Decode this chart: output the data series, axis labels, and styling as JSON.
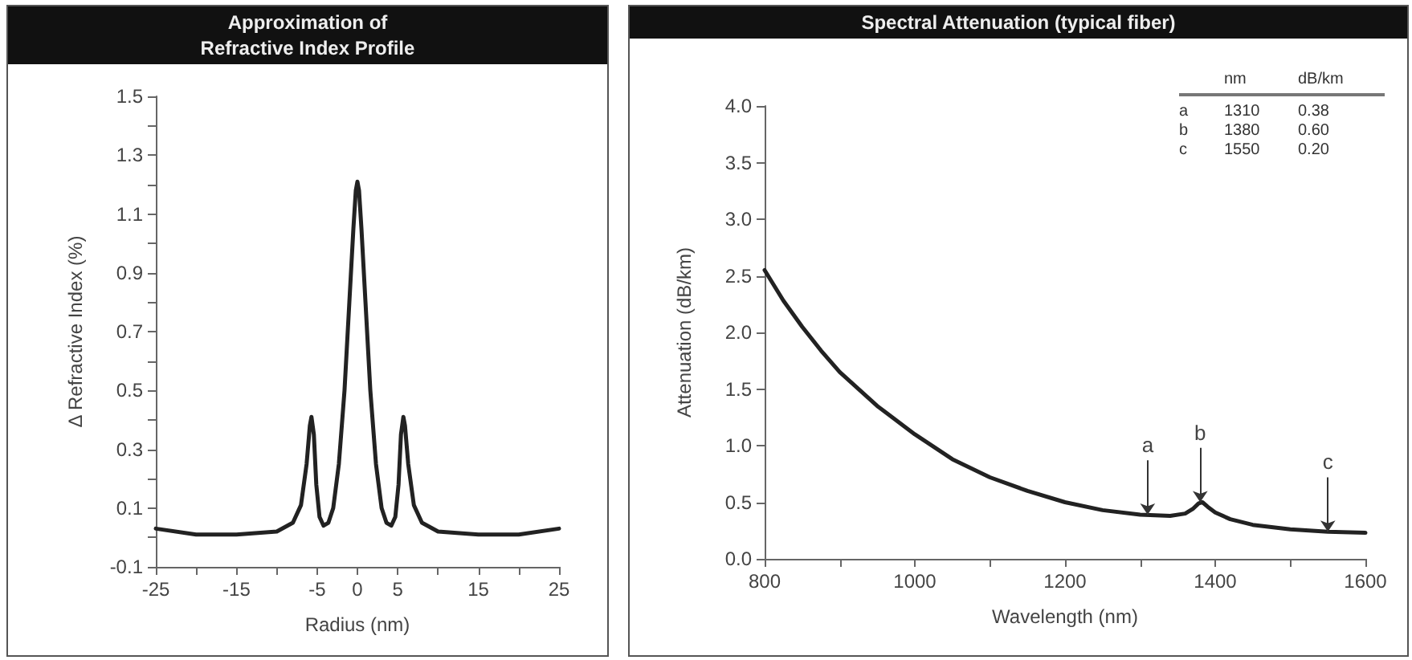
{
  "chart_data": [
    {
      "type": "line",
      "title": "Approximation of\nRefractive Index Profile",
      "xlabel": "Radius (nm)",
      "ylabel": "Δ Refractive Index (%)",
      "x": [
        -25,
        -20,
        -15,
        -10,
        -8,
        -7,
        -6.3,
        -5.9,
        -5.7,
        -5.4,
        -5.1,
        -4.7,
        -4.2,
        -3.6,
        -3,
        -2.3,
        -1.6,
        -1,
        -0.5,
        -0.2,
        0,
        0.2,
        0.5,
        1,
        1.6,
        2.3,
        3,
        3.6,
        4.2,
        4.7,
        5.1,
        5.4,
        5.7,
        5.9,
        6.3,
        7,
        8,
        10,
        15,
        20,
        25
      ],
      "series": [
        {
          "color": "#222222",
          "values": [
            0.03,
            0.01,
            0.01,
            0.02,
            0.05,
            0.11,
            0.25,
            0.38,
            0.41,
            0.35,
            0.18,
            0.07,
            0.04,
            0.05,
            0.1,
            0.25,
            0.5,
            0.8,
            1.05,
            1.18,
            1.21,
            1.18,
            1.05,
            0.8,
            0.5,
            0.25,
            0.1,
            0.05,
            0.04,
            0.07,
            0.18,
            0.35,
            0.41,
            0.38,
            0.25,
            0.11,
            0.05,
            0.02,
            0.01,
            0.01,
            0.03
          ]
        }
      ],
      "xlim": [
        -25,
        25
      ],
      "xticks": [
        -25,
        {
          "value": -20,
          "label": null
        },
        -15,
        {
          "value": -10,
          "label": null
        },
        -5,
        0,
        5,
        {
          "value": 10,
          "label": null
        },
        15,
        {
          "value": 20,
          "label": null
        },
        25
      ],
      "ylim": [
        -0.1,
        1.5
      ],
      "yticks": [
        -0.1,
        {
          "value": 0,
          "label": null
        },
        0.1,
        {
          "value": 0.2,
          "label": null
        },
        0.3,
        {
          "value": 0.4,
          "label": null
        },
        0.5,
        {
          "value": 0.6,
          "label": null
        },
        0.7,
        {
          "value": 0.8,
          "label": null
        },
        0.9,
        {
          "value": 1,
          "label": null
        },
        1.1,
        {
          "value": 1.2,
          "label": null
        },
        1.3,
        {
          "value": 1.4,
          "label": null
        },
        1.5
      ],
      "grid": false,
      "marker": "none",
      "line_style": "solid"
    },
    {
      "type": "line",
      "title": "Spectral Attenuation (typical fiber)",
      "xlabel": "Wavelength (nm)",
      "ylabel": "Attenuation (dB/km)",
      "x": [
        800,
        825,
        850,
        875,
        900,
        950,
        1000,
        1050,
        1100,
        1150,
        1200,
        1250,
        1300,
        1340,
        1360,
        1370,
        1378,
        1383,
        1390,
        1400,
        1420,
        1450,
        1500,
        1550,
        1600
      ],
      "series": [
        {
          "color": "#222222",
          "values": [
            2.55,
            2.28,
            2.05,
            1.84,
            1.65,
            1.35,
            1.1,
            0.88,
            0.72,
            0.6,
            0.5,
            0.43,
            0.39,
            0.38,
            0.4,
            0.44,
            0.49,
            0.5,
            0.46,
            0.41,
            0.35,
            0.3,
            0.26,
            0.24,
            0.23
          ]
        }
      ],
      "xlim": [
        800,
        1600
      ],
      "xticks": [
        800,
        {
          "value": 900,
          "label": null
        },
        1000,
        {
          "value": 1100,
          "label": null
        },
        1200,
        {
          "value": 1300,
          "label": null
        },
        1400,
        {
          "value": 1500,
          "label": null
        },
        1600
      ],
      "ylim": [
        0,
        4
      ],
      "yticks": [
        {
          "value": 0,
          "label": "0.0"
        },
        0.5,
        {
          "value": 1,
          "label": "1.0"
        },
        1.5,
        {
          "value": 2,
          "label": "2.0"
        },
        2.5,
        {
          "value": 3,
          "label": "3.0"
        },
        3.5,
        {
          "value": 4,
          "label": "4.0"
        }
      ],
      "annotations": [
        "nm",
        "dB/km",
        "a",
        "1310",
        "0.38",
        "b",
        "1380",
        "0.60",
        "c",
        "1550",
        "0.20",
        {
          "text": "a",
          "x": 1310,
          "y": 0.39
        },
        {
          "text": "b",
          "x": 1380,
          "y": 0.5
        },
        {
          "text": "c",
          "x": 1550,
          "y": 0.24
        }
      ],
      "grid": false,
      "marker": "none",
      "line_style": "solid"
    }
  ]
}
